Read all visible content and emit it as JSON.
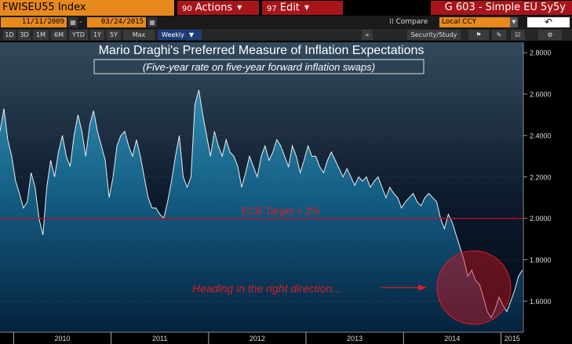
{
  "toolbar": {
    "ticker": "FWISEU55 Index",
    "actions": {
      "num": "90",
      "label": "Actions"
    },
    "edit": {
      "num": "97",
      "label": "Edit"
    },
    "chart_name": "G 603 - Simple EU 5y5y"
  },
  "date_bar": {
    "start_date": "11/11/2009",
    "end_date": "03/24/2015",
    "compare_label": "Compare",
    "currency": "Local CCY"
  },
  "periods": [
    "1D",
    "3D",
    "1M",
    "6M",
    "YTD",
    "1Y",
    "5Y",
    "Max"
  ],
  "frequency": "Weekly",
  "security_study": "Security/Study",
  "colors": {
    "accent": "#e8891e",
    "menu": "#a7151b",
    "target_line": "#c8101e",
    "annotation": "#d81e28"
  },
  "chart_data": {
    "type": "area",
    "title": "Mario Draghi's Preferred Measure of Inflation Expectations",
    "subtitle": "(Five-year rate on five-year forward inflation swaps)",
    "x_ticks": [
      "2010",
      "2011",
      "2012",
      "2013",
      "2014",
      "2015"
    ],
    "y_ticks": [
      "1.6000",
      "1.8000",
      "2.0000",
      "2.2000",
      "2.4000",
      "2.6000",
      "2.8000"
    ],
    "ylim": [
      1.45,
      2.85
    ],
    "x_range": [
      2009.86,
      2015.23
    ],
    "target": {
      "value": 2.0,
      "label": "ECB Target = 2%"
    },
    "annotation": "Heading in the right direction...",
    "series": [
      {
        "x": [
          2009.86,
          2009.9,
          2009.94,
          2009.98,
          2010.02,
          2010.06,
          2010.1,
          2010.14,
          2010.18,
          2010.22,
          2010.26,
          2010.3,
          2010.34,
          2010.38,
          2010.42,
          2010.46,
          2010.5,
          2010.54,
          2010.58,
          2010.62,
          2010.66,
          2010.7,
          2010.74,
          2010.78,
          2010.82,
          2010.86,
          2010.9,
          2010.94,
          2010.98,
          2011.02,
          2011.06,
          2011.1,
          2011.14,
          2011.18,
          2011.22,
          2011.26,
          2011.3,
          2011.34,
          2011.38,
          2011.42,
          2011.46,
          2011.5,
          2011.54,
          2011.58,
          2011.62,
          2011.66,
          2011.7,
          2011.74,
          2011.78,
          2011.82,
          2011.86,
          2011.9,
          2011.94,
          2011.98,
          2012.02,
          2012.06,
          2012.1,
          2012.14,
          2012.18,
          2012.22,
          2012.26,
          2012.3,
          2012.34,
          2012.38,
          2012.42,
          2012.46,
          2012.5,
          2012.54,
          2012.58,
          2012.62,
          2012.66,
          2012.7,
          2012.74,
          2012.78,
          2012.82,
          2012.86,
          2012.9,
          2012.94,
          2012.98,
          2013.02,
          2013.06,
          2013.1,
          2013.14,
          2013.18,
          2013.22,
          2013.26,
          2013.3,
          2013.34,
          2013.38,
          2013.42,
          2013.46,
          2013.5,
          2013.54,
          2013.58,
          2013.62,
          2013.66,
          2013.7,
          2013.74,
          2013.78,
          2013.82,
          2013.86,
          2013.9,
          2013.94,
          2013.98,
          2014.02,
          2014.06,
          2014.1,
          2014.14,
          2014.18,
          2014.22,
          2014.26,
          2014.3,
          2014.34,
          2014.38,
          2014.42,
          2014.46,
          2014.5,
          2014.54,
          2014.58,
          2014.62,
          2014.66,
          2014.7,
          2014.74,
          2014.78,
          2014.82,
          2014.86,
          2014.9,
          2014.94,
          2014.98,
          2015.02,
          2015.06,
          2015.1,
          2015.14,
          2015.18,
          2015.22
        ],
        "y": [
          2.42,
          2.53,
          2.38,
          2.3,
          2.18,
          2.12,
          2.05,
          2.08,
          2.22,
          2.15,
          2.0,
          1.92,
          2.15,
          2.28,
          2.2,
          2.32,
          2.4,
          2.3,
          2.25,
          2.4,
          2.5,
          2.42,
          2.3,
          2.45,
          2.52,
          2.42,
          2.35,
          2.28,
          2.1,
          2.2,
          2.35,
          2.4,
          2.42,
          2.35,
          2.3,
          2.38,
          2.3,
          2.2,
          2.1,
          2.05,
          2.05,
          2.02,
          2.0,
          2.08,
          2.18,
          2.3,
          2.4,
          2.2,
          2.15,
          2.2,
          2.55,
          2.62,
          2.5,
          2.4,
          2.3,
          2.42,
          2.35,
          2.3,
          2.38,
          2.32,
          2.3,
          2.25,
          2.15,
          2.22,
          2.3,
          2.25,
          2.2,
          2.3,
          2.35,
          2.28,
          2.32,
          2.38,
          2.35,
          2.3,
          2.25,
          2.35,
          2.3,
          2.22,
          2.28,
          2.35,
          2.3,
          2.3,
          2.25,
          2.22,
          2.28,
          2.32,
          2.28,
          2.24,
          2.2,
          2.24,
          2.2,
          2.16,
          2.2,
          2.18,
          2.2,
          2.15,
          2.18,
          2.2,
          2.15,
          2.1,
          2.15,
          2.12,
          2.1,
          2.05,
          2.08,
          2.1,
          2.12,
          2.08,
          2.06,
          2.1,
          2.12,
          2.1,
          2.08,
          2.0,
          1.95,
          2.02,
          1.98,
          1.92,
          1.86,
          1.8,
          1.72,
          1.75,
          1.7,
          1.68,
          1.62,
          1.55,
          1.52,
          1.56,
          1.62,
          1.58,
          1.55,
          1.6,
          1.65,
          1.72,
          1.75
        ]
      }
    ]
  }
}
